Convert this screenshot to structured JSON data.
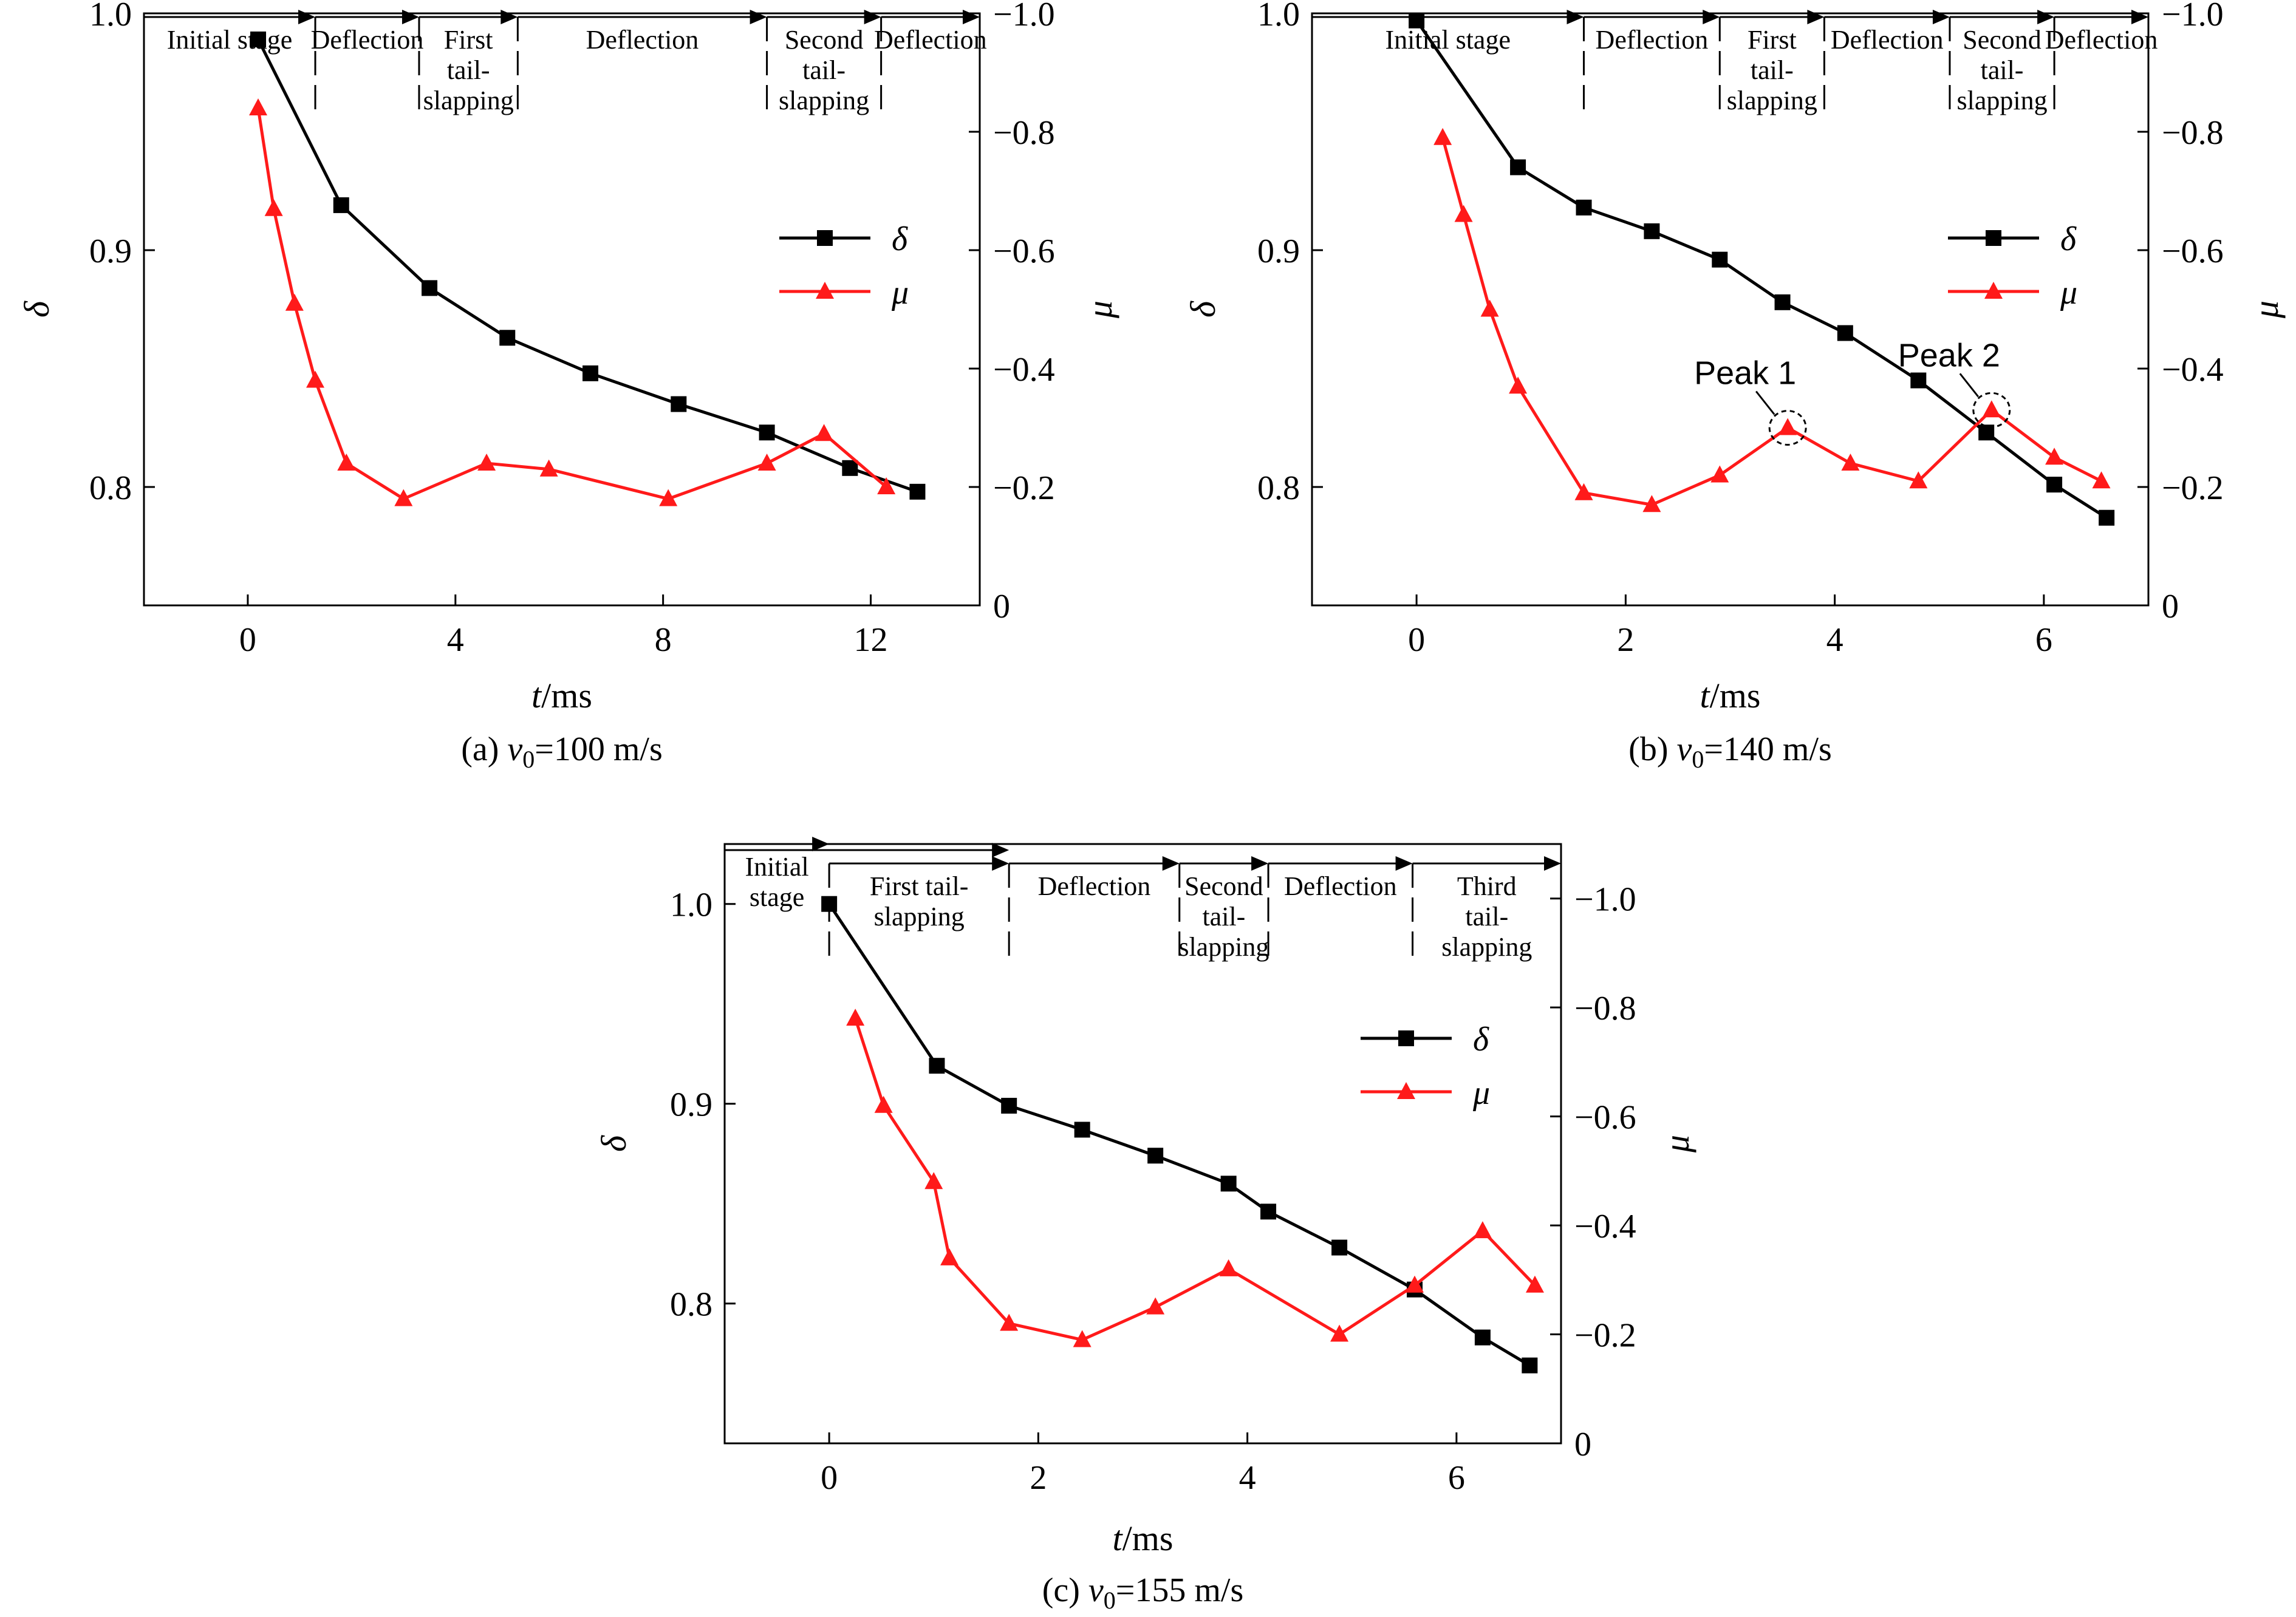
{
  "chart_data": [
    {
      "type": "line",
      "panel_caption_prefix": "(a) ",
      "panel_caption_var": "v",
      "panel_caption_sub": "0",
      "panel_caption_rest": "=100 m/s",
      "xlabel_var": "t",
      "xlabel_unit": "/ms",
      "ylabel_left": "δ",
      "ylabel_right": "μ",
      "xlim": [
        -2.0,
        14.1
      ],
      "ylim_left": [
        0.75,
        1.0
      ],
      "ylim_right": [
        0,
        -1.0
      ],
      "x_ticks": [
        "0",
        "4",
        "8",
        "12"
      ],
      "x_tick_values": [
        0,
        4,
        8,
        12
      ],
      "y_left_ticks": [
        "0.8",
        "0.9",
        "1.0"
      ],
      "y_left_tick_values": [
        0.8,
        0.9,
        1.0
      ],
      "y_right_ticks": [
        "0",
        "−0.2",
        "−0.4",
        "−0.6",
        "−0.8",
        "−1.0"
      ],
      "y_right_tick_values": [
        0,
        -0.2,
        -0.4,
        -0.6,
        -0.8,
        -1.0
      ],
      "legend_position": "right",
      "series": [
        {
          "name": "δ",
          "axis": "left",
          "color": "#000000",
          "marker": "square",
          "x": [
            0.2,
            1.8,
            3.5,
            5.0,
            6.6,
            8.3,
            10.0,
            11.6,
            12.9
          ],
          "y": [
            0.989,
            0.919,
            0.884,
            0.863,
            0.848,
            0.835,
            0.823,
            0.808,
            0.798
          ]
        },
        {
          "name": "μ",
          "axis": "right",
          "color": "#ff1a1a",
          "marker": "triangle",
          "x": [
            0.2,
            0.5,
            0.9,
            1.3,
            1.9,
            3.0,
            4.6,
            5.8,
            8.1,
            10.0,
            11.1,
            12.3
          ],
          "y": [
            -0.84,
            -0.67,
            -0.51,
            -0.38,
            -0.24,
            -0.18,
            -0.24,
            -0.23,
            -0.18,
            -0.24,
            -0.29,
            -0.2
          ]
        }
      ],
      "stages": [
        {
          "x0": -2.0,
          "x1": 1.3,
          "lines": [
            "Initial stage"
          ],
          "tier": "top"
        },
        {
          "x0": 1.3,
          "x1": 3.3,
          "lines": [
            "Deflection"
          ],
          "tier": "top"
        },
        {
          "x0": 3.3,
          "x1": 5.2,
          "lines": [
            "First",
            "tail-",
            "slapping"
          ],
          "tier": "top"
        },
        {
          "x0": 5.2,
          "x1": 10.0,
          "lines": [
            "Deflection"
          ],
          "tier": "top"
        },
        {
          "x0": 10.0,
          "x1": 12.2,
          "lines": [
            "Second",
            "tail-",
            "slapping"
          ],
          "tier": "top"
        },
        {
          "x0": 12.2,
          "x1": 14.1,
          "lines": [
            "Deflection"
          ],
          "tier": "top"
        }
      ],
      "annotations": []
    },
    {
      "type": "line",
      "panel_caption_prefix": "(b) ",
      "panel_caption_var": "v",
      "panel_caption_sub": "0",
      "panel_caption_rest": "=140 m/s",
      "xlabel_var": "t",
      "xlabel_unit": "/ms",
      "ylabel_left": "δ",
      "ylabel_right": "μ",
      "xlim": [
        -1.0,
        7.0
      ],
      "ylim_left": [
        0.75,
        1.0
      ],
      "ylim_right": [
        0,
        -1.0
      ],
      "x_ticks": [
        "0",
        "2",
        "4",
        "6"
      ],
      "x_tick_values": [
        0,
        2,
        4,
        6
      ],
      "y_left_ticks": [
        "0.8",
        "0.9",
        "1.0"
      ],
      "y_left_tick_values": [
        0.8,
        0.9,
        1.0
      ],
      "y_right_ticks": [
        "0",
        "−0.2",
        "−0.4",
        "−0.6",
        "−0.8",
        "−1.0"
      ],
      "y_right_tick_values": [
        0,
        -0.2,
        -0.4,
        -0.6,
        -0.8,
        -1.0
      ],
      "legend_position": "right",
      "series": [
        {
          "name": "δ",
          "axis": "left",
          "color": "#000000",
          "marker": "square",
          "x": [
            0.0,
            0.97,
            1.6,
            2.25,
            2.9,
            3.5,
            4.1,
            4.8,
            5.45,
            6.1,
            6.6
          ],
          "y": [
            0.997,
            0.935,
            0.918,
            0.908,
            0.896,
            0.878,
            0.865,
            0.845,
            0.823,
            0.801,
            0.787
          ]
        },
        {
          "name": "μ",
          "axis": "right",
          "color": "#ff1a1a",
          "marker": "triangle",
          "x": [
            0.25,
            0.45,
            0.7,
            0.97,
            1.6,
            2.25,
            2.9,
            3.55,
            4.15,
            4.8,
            5.5,
            6.1,
            6.55
          ],
          "y": [
            -0.79,
            -0.66,
            -0.5,
            -0.37,
            -0.19,
            -0.17,
            -0.22,
            -0.3,
            -0.24,
            -0.21,
            -0.33,
            -0.25,
            -0.21
          ]
        }
      ],
      "stages": [
        {
          "x0": -1.0,
          "x1": 1.6,
          "lines": [
            "Initial stage"
          ],
          "tier": "top"
        },
        {
          "x0": 1.6,
          "x1": 2.9,
          "lines": [
            "Deflection"
          ],
          "tier": "top"
        },
        {
          "x0": 2.9,
          "x1": 3.9,
          "lines": [
            "First",
            "tail-",
            "slapping"
          ],
          "tier": "top"
        },
        {
          "x0": 3.9,
          "x1": 5.1,
          "lines": [
            "Deflection"
          ],
          "tier": "top"
        },
        {
          "x0": 5.1,
          "x1": 6.1,
          "lines": [
            "Second",
            "tail-",
            "slapping"
          ],
          "tier": "top"
        },
        {
          "x0": 6.1,
          "x1": 7.0,
          "lines": [
            "Deflection"
          ],
          "tier": "top"
        }
      ],
      "annotations": [
        {
          "text": "Peak 1",
          "x": 3.55,
          "y": -0.3
        },
        {
          "text": "Peak 2",
          "x": 5.5,
          "y": -0.33
        }
      ]
    },
    {
      "type": "line",
      "panel_caption_prefix": "(c) ",
      "panel_caption_var": "v",
      "panel_caption_sub": "0",
      "panel_caption_rest": "=155 m/s",
      "xlabel_var": "t",
      "xlabel_unit": "/ms",
      "ylabel_left": "δ",
      "ylabel_right": "μ",
      "xlim": [
        -1.0,
        7.0
      ],
      "ylim_left": [
        0.73,
        1.03
      ],
      "ylim_right": [
        0,
        -1.1
      ],
      "x_ticks": [
        "0",
        "2",
        "4",
        "6"
      ],
      "x_tick_values": [
        0,
        2,
        4,
        6
      ],
      "y_left_ticks": [
        "0.8",
        "0.9",
        "1.0"
      ],
      "y_left_tick_values": [
        0.8,
        0.9,
        1.0
      ],
      "y_right_ticks": [
        "0",
        "−0.2",
        "−0.4",
        "−0.6",
        "−0.8",
        "−1.0"
      ],
      "y_right_tick_values": [
        0,
        -0.2,
        -0.4,
        -0.6,
        -0.8,
        -1.0
      ],
      "legend_position": "right",
      "series": [
        {
          "name": "δ",
          "axis": "left",
          "color": "#000000",
          "marker": "square",
          "x": [
            0.0,
            1.03,
            1.72,
            2.42,
            3.12,
            3.82,
            4.2,
            4.88,
            5.6,
            6.25,
            6.7
          ],
          "y": [
            1.0,
            0.919,
            0.899,
            0.887,
            0.874,
            0.86,
            0.846,
            0.828,
            0.807,
            0.783,
            0.769
          ]
        },
        {
          "name": "μ",
          "axis": "right",
          "color": "#ff1a1a",
          "marker": "triangle",
          "x": [
            0.25,
            0.52,
            1.0,
            1.15,
            1.72,
            2.42,
            3.12,
            3.82,
            4.88,
            5.6,
            6.25,
            6.75
          ],
          "y": [
            -0.78,
            -0.62,
            -0.48,
            -0.34,
            -0.22,
            -0.19,
            -0.25,
            -0.32,
            -0.2,
            -0.29,
            -0.39,
            -0.29
          ]
        }
      ],
      "stages": [
        {
          "x0": -1.0,
          "x1": 0.0,
          "lines": [
            "Initial",
            "stage"
          ],
          "tier": "top"
        },
        {
          "x0": 0.0,
          "x1": 1.72,
          "lines": [
            "First tail-",
            "slapping"
          ],
          "tier": "low"
        },
        {
          "x0": 1.72,
          "x1": 3.35,
          "lines": [
            "Deflection"
          ],
          "tier": "low"
        },
        {
          "x0": 3.35,
          "x1": 4.2,
          "lines": [
            "Second",
            "tail-",
            "slapping"
          ],
          "tier": "low"
        },
        {
          "x0": 4.2,
          "x1": 5.58,
          "lines": [
            "Deflection"
          ],
          "tier": "low"
        },
        {
          "x0": 5.58,
          "x1": 7.0,
          "lines": [
            "Third",
            "tail-",
            "slapping"
          ],
          "tier": "low"
        }
      ],
      "annotations": []
    }
  ]
}
